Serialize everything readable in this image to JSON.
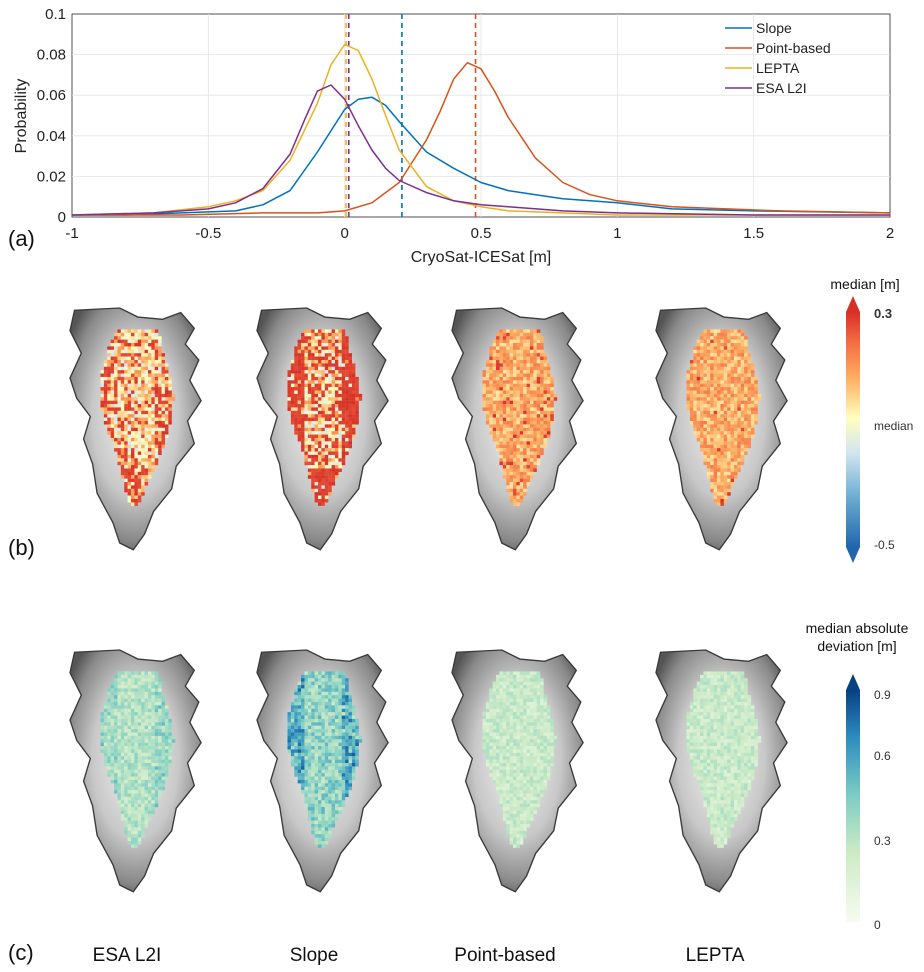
{
  "chart_data": [
    {
      "type": "line",
      "panel": "(a)",
      "xlabel": "CryoSat-ICESat [m]",
      "ylabel": "Probability",
      "xlim": [
        -1,
        2
      ],
      "ylim": [
        0,
        0.1
      ],
      "xticks": [
        "-1",
        "-0.5",
        "0",
        "0.5",
        "1",
        "1.5",
        "2"
      ],
      "xtick_values": [
        -1,
        -0.5,
        0,
        0.5,
        1,
        1.5,
        2
      ],
      "yticks": [
        "0",
        "0.02",
        "0.04",
        "0.06",
        "0.08",
        "0.1"
      ],
      "ytick_values": [
        0,
        0.02,
        0.04,
        0.06,
        0.08,
        0.1
      ],
      "grid": true,
      "legend_position": "top-right",
      "series": [
        {
          "name": "Slope",
          "color": "#0072BD",
          "median": 0.21,
          "x": [
            -1,
            -0.8,
            -0.6,
            -0.4,
            -0.3,
            -0.2,
            -0.1,
            0,
            0.05,
            0.1,
            0.15,
            0.2,
            0.3,
            0.4,
            0.5,
            0.6,
            0.7,
            0.8,
            1.0,
            1.2,
            1.5,
            2.0
          ],
          "y": [
            0.001,
            0.001,
            0.002,
            0.003,
            0.006,
            0.013,
            0.032,
            0.053,
            0.058,
            0.059,
            0.055,
            0.047,
            0.032,
            0.024,
            0.017,
            0.013,
            0.011,
            0.009,
            0.007,
            0.004,
            0.003,
            0.002
          ]
        },
        {
          "name": "Point-based",
          "color": "#D95319",
          "median": 0.48,
          "x": [
            -1,
            -0.6,
            -0.3,
            -0.1,
            0,
            0.1,
            0.2,
            0.3,
            0.35,
            0.4,
            0.45,
            0.5,
            0.55,
            0.6,
            0.7,
            0.8,
            0.9,
            1.0,
            1.2,
            1.4,
            1.6,
            2.0
          ],
          "y": [
            0.001,
            0.001,
            0.002,
            0.002,
            0.003,
            0.007,
            0.017,
            0.038,
            0.052,
            0.068,
            0.076,
            0.073,
            0.062,
            0.049,
            0.029,
            0.017,
            0.011,
            0.008,
            0.005,
            0.004,
            0.003,
            0.002
          ]
        },
        {
          "name": "LEPTA",
          "color": "#EDB120",
          "median": 0.005,
          "x": [
            -1,
            -0.7,
            -0.5,
            -0.4,
            -0.3,
            -0.2,
            -0.1,
            -0.05,
            0,
            0.05,
            0.1,
            0.15,
            0.2,
            0.3,
            0.4,
            0.5,
            0.6,
            0.8,
            1.0,
            1.5,
            2.0
          ],
          "y": [
            0.001,
            0.002,
            0.005,
            0.008,
            0.013,
            0.028,
            0.056,
            0.075,
            0.085,
            0.082,
            0.068,
            0.05,
            0.033,
            0.015,
            0.008,
            0.005,
            0.003,
            0.002,
            0.001,
            0.001,
            0.001
          ]
        },
        {
          "name": "ESA L2I",
          "color": "#7E2F8E",
          "median": 0.015,
          "x": [
            -1,
            -0.7,
            -0.5,
            -0.4,
            -0.3,
            -0.2,
            -0.15,
            -0.1,
            -0.05,
            0,
            0.05,
            0.1,
            0.15,
            0.2,
            0.3,
            0.4,
            0.5,
            0.6,
            0.8,
            1.0,
            1.5,
            2.0
          ],
          "y": [
            0.001,
            0.002,
            0.004,
            0.007,
            0.014,
            0.031,
            0.047,
            0.062,
            0.065,
            0.058,
            0.045,
            0.033,
            0.024,
            0.018,
            0.012,
            0.008,
            0.006,
            0.005,
            0.003,
            0.002,
            0.001,
            0.001
          ]
        }
      ]
    },
    {
      "type": "heatmap",
      "panel": "(b)",
      "maps": [
        "ESA L2I",
        "Slope",
        "Point-based",
        "LEPTA"
      ],
      "colorbar_title": "median [m]",
      "colorbar_top": "0.3",
      "colorbar_mid": "median",
      "colorbar_bottom": "-0.5",
      "colormap": [
        "#2166ac",
        "#67a9cf",
        "#d1e5f0",
        "#ffffbf",
        "#fdae61",
        "#f46d43",
        "#d73027"
      ],
      "high_fraction": [
        0.3,
        0.55,
        0.05,
        0.02
      ]
    },
    {
      "type": "heatmap",
      "panel": "(c)",
      "maps": [
        "ESA L2I",
        "Slope",
        "Point-based",
        "LEPTA"
      ],
      "colorbar_title_line1": "median absolute",
      "colorbar_title_line2": "deviation [m]",
      "colorbar_ticks": [
        "0.9",
        "0.6",
        "0.3",
        "0"
      ],
      "colorbar_tick_values": [
        0.9,
        0.6,
        0.3,
        0
      ],
      "colorbar_range": [
        0,
        1
      ],
      "colormap": [
        "#f7fcf0",
        "#ccebc5",
        "#7bccc4",
        "#2b8cbe",
        "#084081"
      ]
    }
  ],
  "labels": {
    "panel_a": "(a)",
    "panel_b": "(b)",
    "panel_c": "(c)",
    "col_1": "ESA L2I",
    "col_2": "Slope",
    "col_3": "Point-based",
    "col_4": "LEPTA"
  }
}
